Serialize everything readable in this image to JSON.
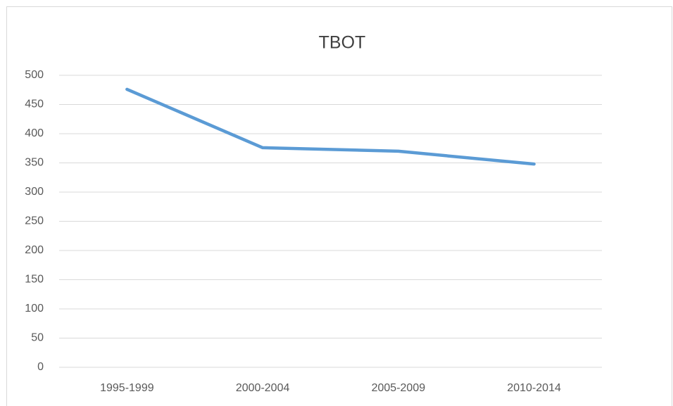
{
  "chart_data": {
    "type": "line",
    "title": "TBOT",
    "categories": [
      "1995-1999",
      "2000-2004",
      "2005-2009",
      "2010-2014"
    ],
    "series": [
      {
        "name": "TBOT",
        "color": "#5b9bd5",
        "values": [
          476,
          376,
          370,
          348
        ]
      }
    ],
    "ylim": [
      0,
      500
    ],
    "yticks": [
      0,
      50,
      100,
      150,
      200,
      250,
      300,
      350,
      400,
      450,
      500
    ],
    "grid": true
  }
}
